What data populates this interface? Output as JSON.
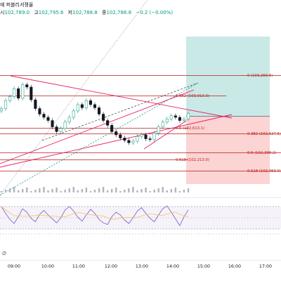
{
  "header": {
    "title_fragment": "예 퍼블리셔쟁올",
    "ohlc": [
      {
        "label": "시",
        "value": "102,789.0"
      },
      {
        "label": "고",
        "value": "102,795.6"
      },
      {
        "label": "저",
        "value": "102,788.8"
      },
      {
        "label": "종",
        "value": "102,788.8"
      }
    ],
    "change": "−0.2 (−0.00%)"
  },
  "footer_glyph": "∅",
  "colors": {
    "fib_line": "#b71c1c",
    "target_zone": "#26a69a",
    "stop_zone": "#ef5350",
    "rsi_band": "#7e57c2",
    "rsi_line": "#7e57c2",
    "rsi_ma": "#f2c94c",
    "trend": "#e91e63",
    "dotted": "#089981",
    "candle_up": "#089981",
    "candle_down": "#131722"
  },
  "chart_data": {
    "type": "candlestick",
    "x_ticks": [
      "09:00",
      "10:00",
      "11:00",
      "12:00",
      "13:00",
      "14:00",
      "15:00",
      "16:00",
      "17:00"
    ],
    "fib_levels": [
      {
        "ratio": "0",
        "price": "103,269.6"
      },
      {
        "ratio": "0.382",
        "price": "103,013.3"
      },
      {
        "ratio": "0.5",
        "price": "102,613.1"
      },
      {
        "ratio": "0.382",
        "price": "102,527.5"
      },
      {
        "ratio": "0.5",
        "price": "102,298.2"
      },
      {
        "ratio": "0.618",
        "price": "102,213.0"
      },
      {
        "ratio": "0.618",
        "price": "102,069.0"
      }
    ],
    "price_close_approx": [
      102850,
      102950,
      103000,
      103100,
      102980,
      103150,
      103120,
      102960,
      102850,
      102780,
      102740,
      102700,
      102620,
      102560,
      102600,
      102680,
      102740,
      102820,
      102900,
      102860,
      102950,
      102900,
      102860,
      102780,
      102700,
      102640,
      102560,
      102520,
      102480,
      102450,
      102420,
      102440,
      102500,
      102520,
      102470,
      102460,
      102540,
      102620,
      102680,
      102720,
      102760,
      102740,
      102700,
      102720,
      102788.8
    ],
    "rsi_approx": [
      70,
      58,
      47,
      40,
      52,
      66,
      60,
      49,
      43,
      56,
      63,
      55,
      48,
      41,
      50,
      64,
      70,
      62,
      51,
      44,
      55,
      65,
      58,
      47,
      41,
      38,
      52,
      60,
      55,
      46,
      40,
      50,
      62,
      68,
      58,
      49,
      43,
      55,
      66,
      71,
      60,
      48,
      36,
      52,
      64
    ]
  }
}
